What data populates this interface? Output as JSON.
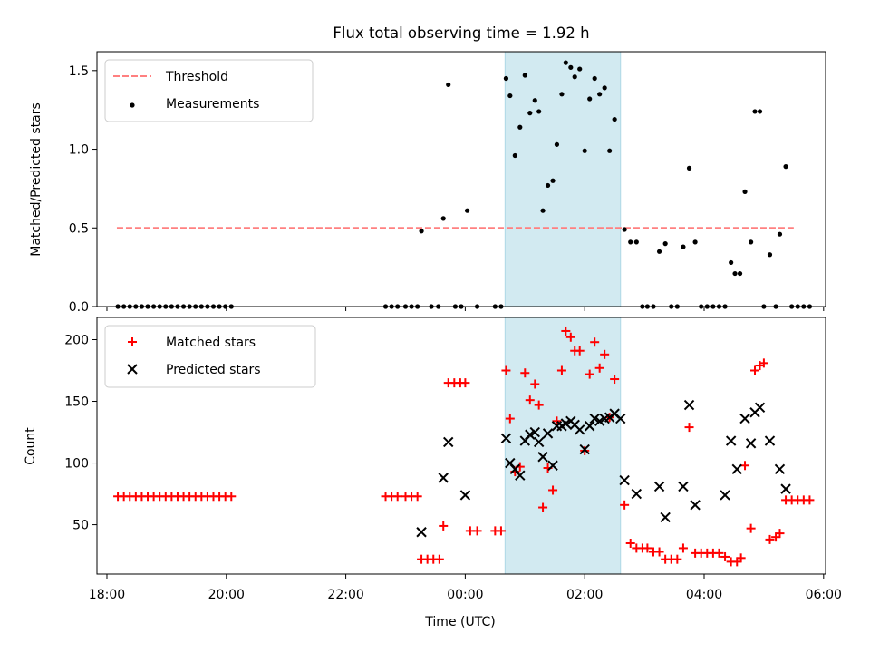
{
  "chart_data": [
    {
      "type": "scatter",
      "title": "Flux total observing time = 1.92 h",
      "ylabel": "Matched/Predicted stars",
      "xlabel": "",
      "xlim": [
        "17:50",
        "06:02"
      ],
      "ylim": [
        0,
        1.62
      ],
      "x_ticks": [
        "18:00",
        "20:00",
        "22:00",
        "00:00",
        "02:00",
        "04:00",
        "06:00"
      ],
      "y_ticks": [
        "0.0",
        "0.5",
        "1.0",
        "1.5"
      ],
      "y_tick_values": [
        0,
        0.5,
        1.0,
        1.5
      ],
      "grid": false,
      "legend_position": "upper-left",
      "highlight_span": {
        "from": "00:40",
        "to": "02:36",
        "color": "#add8e6"
      },
      "series": [
        {
          "name": "Threshold",
          "style": "dashed-line",
          "color": "#ff8080",
          "points": [
            [
              "18:10",
              0.5
            ],
            [
              "05:30",
              0.5
            ]
          ]
        },
        {
          "name": "Measurements",
          "style": "dot",
          "color": "#000000",
          "points": [
            [
              "18:11",
              0
            ],
            [
              "18:17",
              0
            ],
            [
              "18:23",
              0
            ],
            [
              "18:29",
              0
            ],
            [
              "18:35",
              0
            ],
            [
              "18:41",
              0
            ],
            [
              "18:47",
              0
            ],
            [
              "18:53",
              0
            ],
            [
              "18:59",
              0
            ],
            [
              "19:05",
              0
            ],
            [
              "19:11",
              0
            ],
            [
              "19:17",
              0
            ],
            [
              "19:23",
              0
            ],
            [
              "19:29",
              0
            ],
            [
              "19:35",
              0
            ],
            [
              "19:41",
              0
            ],
            [
              "19:47",
              0
            ],
            [
              "19:53",
              0
            ],
            [
              "19:59",
              0
            ],
            [
              "20:05",
              0
            ],
            [
              "22:40",
              0
            ],
            [
              "22:46",
              0
            ],
            [
              "22:52",
              0
            ],
            [
              "23:00",
              0
            ],
            [
              "23:06",
              0
            ],
            [
              "23:12",
              0
            ],
            [
              "23:16",
              0.48
            ],
            [
              "23:26",
              0
            ],
            [
              "23:33",
              0
            ],
            [
              "23:38",
              0.56
            ],
            [
              "23:43",
              1.41
            ],
            [
              "23:50",
              0
            ],
            [
              "23:56",
              0
            ],
            [
              "00:02",
              0.61
            ],
            [
              "00:12",
              0
            ],
            [
              "00:30",
              0
            ],
            [
              "00:36",
              0
            ],
            [
              "00:41",
              1.45
            ],
            [
              "00:45",
              1.34
            ],
            [
              "00:50",
              0.96
            ],
            [
              "00:55",
              1.14
            ],
            [
              "01:00",
              1.47
            ],
            [
              "01:05",
              1.23
            ],
            [
              "01:10",
              1.31
            ],
            [
              "01:14",
              1.24
            ],
            [
              "01:18",
              0.61
            ],
            [
              "01:23",
              0.77
            ],
            [
              "01:28",
              0.8
            ],
            [
              "01:32",
              1.03
            ],
            [
              "01:37",
              1.35
            ],
            [
              "01:41",
              1.55
            ],
            [
              "01:46",
              1.52
            ],
            [
              "01:50",
              1.46
            ],
            [
              "01:55",
              1.51
            ],
            [
              "02:00",
              0.99
            ],
            [
              "02:05",
              1.32
            ],
            [
              "02:10",
              1.45
            ],
            [
              "02:15",
              1.35
            ],
            [
              "02:20",
              1.39
            ],
            [
              "02:25",
              0.99
            ],
            [
              "02:30",
              1.19
            ],
            [
              "02:40",
              0.49
            ],
            [
              "02:46",
              0.41
            ],
            [
              "02:52",
              0.41
            ],
            [
              "02:58",
              0
            ],
            [
              "03:03",
              0
            ],
            [
              "03:09",
              0
            ],
            [
              "03:15",
              0.35
            ],
            [
              "03:21",
              0.4
            ],
            [
              "03:27",
              0
            ],
            [
              "03:33",
              0
            ],
            [
              "03:39",
              0.38
            ],
            [
              "03:45",
              0.88
            ],
            [
              "03:51",
              0.41
            ],
            [
              "03:57",
              0
            ],
            [
              "04:03",
              0
            ],
            [
              "04:09",
              0
            ],
            [
              "04:15",
              0
            ],
            [
              "04:21",
              0
            ],
            [
              "04:27",
              0.28
            ],
            [
              "04:31",
              0.21
            ],
            [
              "04:36",
              0.21
            ],
            [
              "04:41",
              0.73
            ],
            [
              "04:47",
              0.41
            ],
            [
              "04:51",
              1.24
            ],
            [
              "04:56",
              1.24
            ],
            [
              "05:00",
              0
            ],
            [
              "05:06",
              0.33
            ],
            [
              "05:12",
              0
            ],
            [
              "05:16",
              0.46
            ],
            [
              "05:22",
              0.89
            ],
            [
              "05:28",
              0
            ],
            [
              "05:34",
              0
            ],
            [
              "05:40",
              0
            ],
            [
              "05:46",
              0
            ]
          ]
        }
      ]
    },
    {
      "type": "scatter",
      "title": "",
      "ylabel": "Count",
      "xlabel": "Time (UTC)",
      "xlim": [
        "17:50",
        "06:02"
      ],
      "ylim": [
        10,
        218
      ],
      "x_ticks": [
        "18:00",
        "20:00",
        "22:00",
        "00:00",
        "02:00",
        "04:00",
        "06:00"
      ],
      "y_ticks": [
        "50",
        "100",
        "150",
        "200"
      ],
      "y_tick_values": [
        50,
        100,
        150,
        200
      ],
      "grid": false,
      "legend_position": "upper-left",
      "highlight_span": {
        "from": "00:40",
        "to": "02:36",
        "color": "#add8e6"
      },
      "series": [
        {
          "name": "Matched stars",
          "style": "plus",
          "color": "#ff0000",
          "points": [
            [
              "18:11",
              73
            ],
            [
              "18:17",
              73
            ],
            [
              "18:23",
              73
            ],
            [
              "18:29",
              73
            ],
            [
              "18:35",
              73
            ],
            [
              "18:41",
              73
            ],
            [
              "18:47",
              73
            ],
            [
              "18:53",
              73
            ],
            [
              "18:59",
              73
            ],
            [
              "19:05",
              73
            ],
            [
              "19:11",
              73
            ],
            [
              "19:17",
              73
            ],
            [
              "19:23",
              73
            ],
            [
              "19:29",
              73
            ],
            [
              "19:35",
              73
            ],
            [
              "19:41",
              73
            ],
            [
              "19:47",
              73
            ],
            [
              "19:53",
              73
            ],
            [
              "19:59",
              73
            ],
            [
              "20:05",
              73
            ],
            [
              "22:40",
              73
            ],
            [
              "22:46",
              73
            ],
            [
              "22:52",
              73
            ],
            [
              "23:00",
              73
            ],
            [
              "23:06",
              73
            ],
            [
              "23:12",
              73
            ],
            [
              "23:16",
              22
            ],
            [
              "23:22",
              22
            ],
            [
              "23:28",
              22
            ],
            [
              "23:34",
              22
            ],
            [
              "23:38",
              49
            ],
            [
              "23:43",
              165
            ],
            [
              "23:49",
              165
            ],
            [
              "23:55",
              165
            ],
            [
              "00:00",
              165
            ],
            [
              "00:05",
              45
            ],
            [
              "00:12",
              45
            ],
            [
              "00:30",
              45
            ],
            [
              "00:36",
              45
            ],
            [
              "00:41",
              175
            ],
            [
              "00:45",
              136
            ],
            [
              "00:50",
              93
            ],
            [
              "00:55",
              97
            ],
            [
              "01:00",
              173
            ],
            [
              "01:05",
              151
            ],
            [
              "01:10",
              164
            ],
            [
              "01:14",
              147
            ],
            [
              "01:18",
              64
            ],
            [
              "01:23",
              96
            ],
            [
              "01:28",
              78
            ],
            [
              "01:32",
              134
            ],
            [
              "01:37",
              175
            ],
            [
              "01:41",
              207
            ],
            [
              "01:46",
              202
            ],
            [
              "01:50",
              191
            ],
            [
              "01:55",
              191
            ],
            [
              "02:00",
              110
            ],
            [
              "02:05",
              172
            ],
            [
              "02:10",
              198
            ],
            [
              "02:15",
              177
            ],
            [
              "02:20",
              188
            ],
            [
              "02:25",
              137
            ],
            [
              "02:30",
              168
            ],
            [
              "02:40",
              66
            ],
            [
              "02:46",
              35
            ],
            [
              "02:52",
              31
            ],
            [
              "02:58",
              31
            ],
            [
              "03:03",
              31
            ],
            [
              "03:09",
              28
            ],
            [
              "03:15",
              28
            ],
            [
              "03:21",
              22
            ],
            [
              "03:27",
              22
            ],
            [
              "03:33",
              22
            ],
            [
              "03:39",
              31
            ],
            [
              "03:45",
              129
            ],
            [
              "03:51",
              27
            ],
            [
              "03:57",
              27
            ],
            [
              "04:03",
              27
            ],
            [
              "04:09",
              27
            ],
            [
              "04:15",
              27
            ],
            [
              "04:21",
              24
            ],
            [
              "04:27",
              20
            ],
            [
              "04:33",
              20
            ],
            [
              "04:37",
              23
            ],
            [
              "04:41",
              98
            ],
            [
              "04:47",
              47
            ],
            [
              "04:51",
              175
            ],
            [
              "04:56",
              179
            ],
            [
              "05:00",
              181
            ],
            [
              "05:06",
              38
            ],
            [
              "05:12",
              40
            ],
            [
              "05:16",
              43
            ],
            [
              "05:22",
              70
            ],
            [
              "05:28",
              70
            ],
            [
              "05:34",
              70
            ],
            [
              "05:40",
              70
            ],
            [
              "05:46",
              70
            ]
          ]
        },
        {
          "name": "Predicted stars",
          "style": "x",
          "color": "#000000",
          "points": [
            [
              "23:16",
              44
            ],
            [
              "23:38",
              88
            ],
            [
              "23:43",
              117
            ],
            [
              "24:00",
              74
            ],
            [
              "00:41",
              120
            ],
            [
              "00:45",
              100
            ],
            [
              "00:50",
              95
            ],
            [
              "00:55",
              90
            ],
            [
              "01:00",
              118
            ],
            [
              "01:05",
              123
            ],
            [
              "01:10",
              125
            ],
            [
              "01:14",
              117
            ],
            [
              "01:18",
              105
            ],
            [
              "01:23",
              124
            ],
            [
              "01:28",
              98
            ],
            [
              "01:32",
              130
            ],
            [
              "01:37",
              130
            ],
            [
              "01:41",
              132
            ],
            [
              "01:46",
              134
            ],
            [
              "01:50",
              131
            ],
            [
              "01:55",
              127
            ],
            [
              "02:00",
              111
            ],
            [
              "02:05",
              130
            ],
            [
              "02:10",
              136
            ],
            [
              "02:15",
              134
            ],
            [
              "02:20",
              136
            ],
            [
              "02:25",
              137
            ],
            [
              "02:30",
              140
            ],
            [
              "02:36",
              136
            ],
            [
              "02:40",
              86
            ],
            [
              "02:52",
              75
            ],
            [
              "03:15",
              81
            ],
            [
              "03:21",
              56
            ],
            [
              "03:39",
              81
            ],
            [
              "03:45",
              147
            ],
            [
              "03:51",
              66
            ],
            [
              "04:21",
              74
            ],
            [
              "04:27",
              118
            ],
            [
              "04:33",
              95
            ],
            [
              "04:41",
              136
            ],
            [
              "04:47",
              116
            ],
            [
              "04:51",
              141
            ],
            [
              "04:56",
              145
            ],
            [
              "05:06",
              118
            ],
            [
              "05:16",
              95
            ],
            [
              "05:22",
              79
            ]
          ]
        }
      ]
    }
  ]
}
